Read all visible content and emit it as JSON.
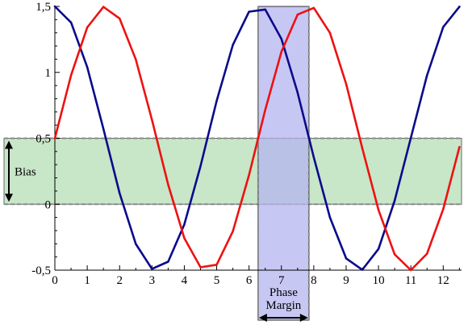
{
  "chart_data": {
    "type": "line",
    "title": "",
    "xlabel": "",
    "ylabel": "",
    "xlim": [
      0,
      12.566
    ],
    "ylim": [
      -0.5,
      1.5
    ],
    "x_ticks": [
      0,
      1,
      2,
      3,
      4,
      5,
      6,
      7,
      8,
      9,
      10,
      11,
      12
    ],
    "y_ticks": [
      -0.5,
      0,
      0.5,
      1,
      1.5
    ],
    "x_tick_labels": [
      "0",
      "1",
      "2",
      "3",
      "4",
      "5",
      "6",
      "7",
      "8",
      "9",
      "10",
      "11",
      "12"
    ],
    "y_tick_labels": [
      "-0,5",
      "0",
      "0,5",
      "1",
      "1,5"
    ],
    "grid": false,
    "legend": "none",
    "series": [
      {
        "color": "#0a0a8c",
        "x": [
          0,
          0.5,
          1.0,
          1.5,
          2.0,
          2.5,
          3.0,
          3.5,
          4.0,
          4.5,
          5.0,
          5.5,
          6.0,
          6.5,
          7.0,
          7.5,
          8.0,
          8.5,
          9.0,
          9.5,
          10.0,
          10.5,
          11.0,
          11.5,
          12.0,
          12.5
        ],
        "values": [
          1.5,
          1.378,
          1.04,
          0.571,
          0.084,
          -0.301,
          -0.49,
          -0.436,
          -0.154,
          0.289,
          0.784,
          1.208,
          1.46,
          1.477,
          1.254,
          0.847,
          0.355,
          -0.1,
          -0.411,
          -0.497,
          -0.339,
          0.027,
          0.504,
          0.977,
          1.344,
          1.498
        ]
      },
      {
        "color": "#ee1111",
        "x": [
          0,
          0.5,
          1.0,
          1.5,
          2.0,
          2.5,
          3.0,
          3.5,
          4.0,
          4.5,
          5.0,
          5.5,
          6.0,
          6.5,
          7.0,
          7.5,
          8.0,
          8.5,
          9.0,
          9.5,
          10.0,
          10.5,
          11.0,
          11.5,
          12.0,
          12.5
        ],
        "values": [
          0.5,
          0.979,
          1.341,
          1.497,
          1.409,
          1.098,
          0.641,
          0.149,
          -0.257,
          -0.478,
          -0.459,
          -0.205,
          0.221,
          0.715,
          1.157,
          1.438,
          1.489,
          1.3,
          0.912,
          0.425,
          -0.044,
          -0.38,
          -0.5,
          -0.375,
          -0.037,
          0.434
        ]
      }
    ],
    "bands": [
      {
        "axis": "y",
        "from": 0,
        "to": 0.5,
        "color": "#c8e6c8",
        "label": "Bias"
      },
      {
        "axis": "x",
        "from": 6.28,
        "to": 7.85,
        "color": "#b4b4f0",
        "label_lines": [
          "Phase",
          "Margin"
        ]
      }
    ]
  }
}
